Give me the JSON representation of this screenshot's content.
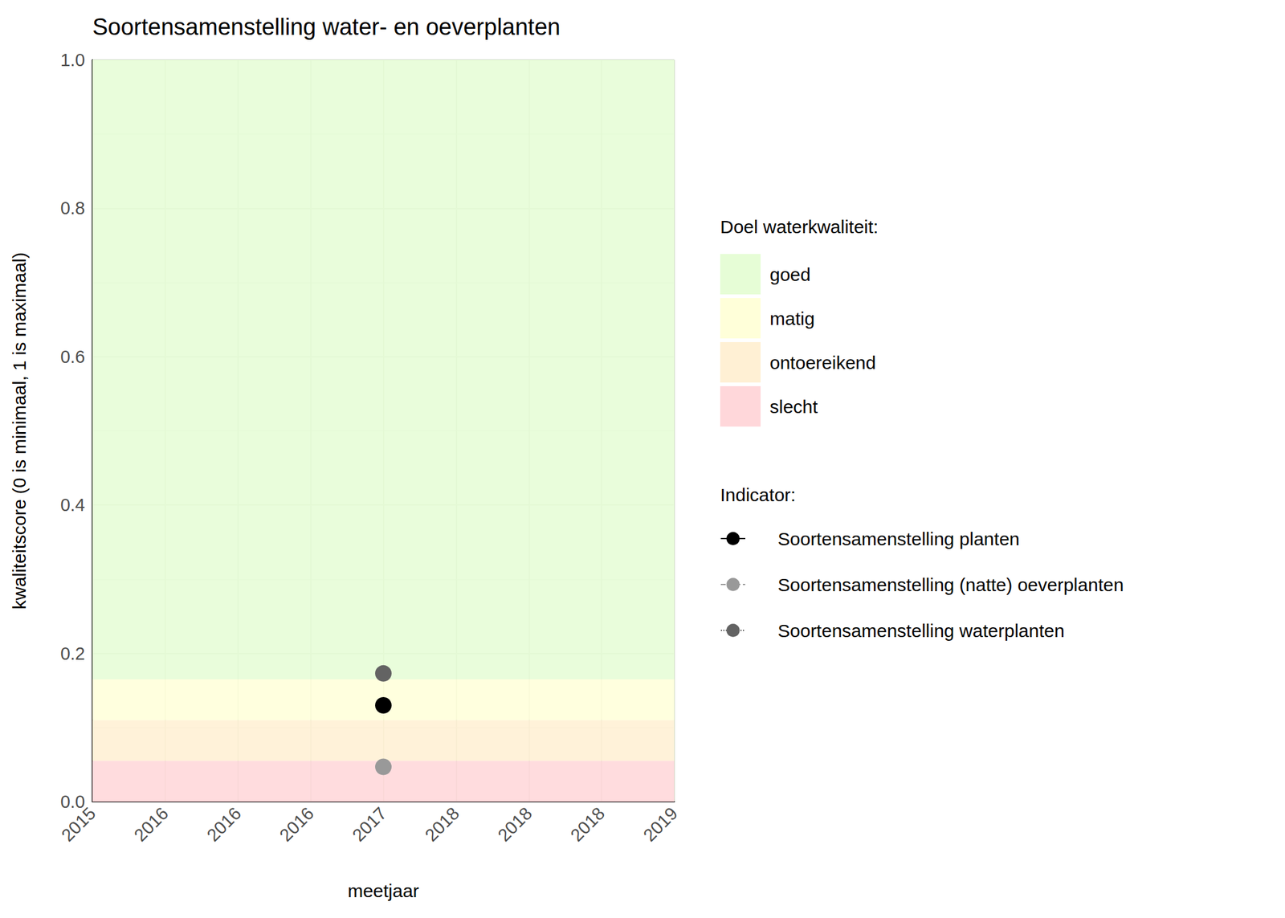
{
  "chart_data": {
    "type": "scatter",
    "title": "Soortensamenstelling water- en oeverplanten",
    "x_label": "meetjaar",
    "y_label": "kwaliteitscore (0 is minimaal, 1 is maximaal)",
    "xlim": [
      2015,
      2019
    ],
    "xticks": [
      {
        "value": 2015,
        "label": "2015"
      },
      {
        "value": 2015.5,
        "label": "2016"
      },
      {
        "value": 2016,
        "label": "2016"
      },
      {
        "value": 2016.5,
        "label": "2016"
      },
      {
        "value": 2017,
        "label": "2017"
      },
      {
        "value": 2017.5,
        "label": "2018"
      },
      {
        "value": 2018,
        "label": "2018"
      },
      {
        "value": 2018.5,
        "label": "2018"
      },
      {
        "value": 2019,
        "label": "2019"
      }
    ],
    "ylim": [
      0,
      1
    ],
    "yticks": [
      {
        "value": 0,
        "label": "0.0"
      },
      {
        "value": 0.2,
        "label": "0.2"
      },
      {
        "value": 0.4,
        "label": "0.4"
      },
      {
        "value": 0.6,
        "label": "0.6"
      },
      {
        "value": 0.8,
        "label": "0.8"
      },
      {
        "value": 1,
        "label": "1.0"
      }
    ],
    "grid": true,
    "legend": "right",
    "bands_title": "Doel waterkwaliteit:",
    "bands": [
      {
        "name": "goed",
        "from": 0.165,
        "to": 1,
        "color": "#e6fdd6"
      },
      {
        "name": "matig",
        "from": 0.11,
        "to": 0.165,
        "color": "#ffffd9"
      },
      {
        "name": "ontoereikend",
        "from": 0.055,
        "to": 0.11,
        "color": "#fff0d4"
      },
      {
        "name": "slecht",
        "from": 0,
        "to": 0.055,
        "color": "#ffd7da"
      }
    ],
    "legend_title": "Indicator:",
    "x": [
      2017
    ],
    "series": [
      {
        "name": "Soortensamenstelling planten",
        "color": "#000000",
        "line_style": "solid",
        "marker": "circle",
        "values": [
          0.13
        ]
      },
      {
        "name": "Soortensamenstelling (natte) oeverplanten",
        "color": "#999999",
        "line_style": "dashed",
        "marker": "circle",
        "values": [
          0.047
        ]
      },
      {
        "name": "Soortensamenstelling waterplanten",
        "color": "#636363",
        "line_style": "dotted",
        "marker": "circle",
        "values": [
          0.173
        ]
      }
    ]
  }
}
